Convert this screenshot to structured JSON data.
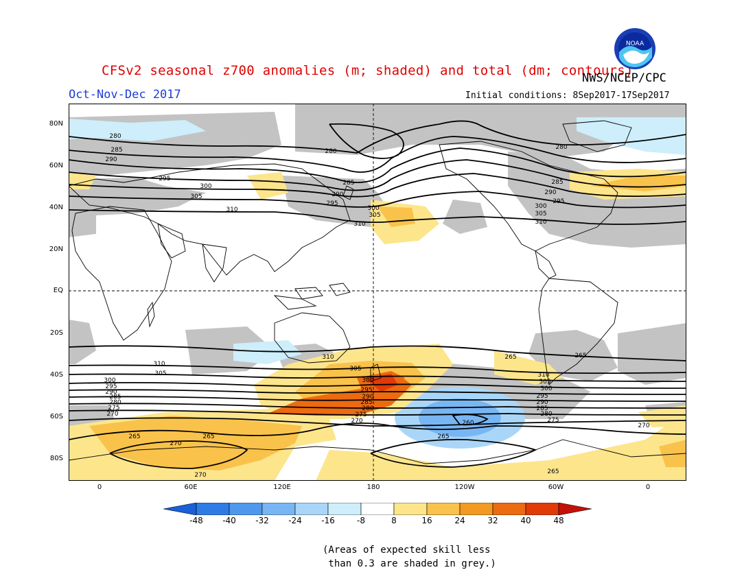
{
  "header": {
    "title": "CFSv2 seasonal z700 anomalies (m; shaded) and total (dm; contours)",
    "agency": "NWS/NCEP/CPC",
    "period": "Oct-Nov-Dec 2017",
    "initial_conditions": "Initial conditions: 8Sep2017-17Sep2017",
    "logo_text": "NOAA"
  },
  "axes": {
    "lat_labels": [
      "80N",
      "60N",
      "40N",
      "20N",
      "EQ",
      "20S",
      "40S",
      "60S",
      "80S"
    ],
    "lon_labels": [
      "0",
      "60E",
      "120E",
      "180",
      "120W",
      "60W",
      "0"
    ]
  },
  "colorbar": {
    "labels": [
      "-48",
      "-40",
      "-32",
      "-24",
      "-16",
      "-8",
      "8",
      "16",
      "24",
      "32",
      "40",
      "48"
    ],
    "colors": [
      "#1b5fd9",
      "#2f7ce6",
      "#4f98ee",
      "#78b6f3",
      "#a9d6f8",
      "#cdeefa",
      "#ffffff",
      "#fde58c",
      "#f9c24a",
      "#f39a22",
      "#ec6a10",
      "#e23a06",
      "#c41108"
    ]
  },
  "contour_labels": {
    "nh": [
      "280",
      "285",
      "290",
      "295",
      "300",
      "305",
      "310",
      "280",
      "285",
      "290",
      "295",
      "300",
      "305",
      "310",
      "280",
      "285",
      "290",
      "295",
      "300",
      "305",
      "310"
    ],
    "sh": [
      "310",
      "305",
      "300",
      "295",
      "290",
      "285",
      "280",
      "275",
      "270",
      "265",
      "265",
      "270",
      "270",
      "310",
      "305",
      "300",
      "295",
      "290",
      "285",
      "280",
      "275",
      "270",
      "265",
      "310",
      "305",
      "300",
      "295",
      "290",
      "285",
      "280",
      "275",
      "270",
      "265",
      "260",
      "265",
      "265"
    ]
  },
  "note": {
    "line1": "(Areas of expected skill less",
    "line2": " than 0.3 are shaded in grey.)"
  },
  "colors": {
    "title": "#e00000",
    "period": "#1c3fd6",
    "grey_skill": "#c3c3c3"
  }
}
